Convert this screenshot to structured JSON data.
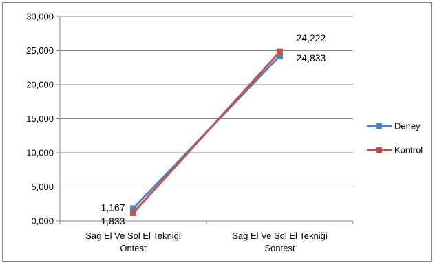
{
  "chart_data": {
    "type": "line",
    "categories": [
      [
        "Sağ El Ve Sol El Tekniği",
        "Öntest"
      ],
      [
        "Sağ El Ve Sol El Tekniği",
        "Sontest"
      ]
    ],
    "ylim": [
      0,
      30
    ],
    "yticks": [
      0,
      5,
      10,
      15,
      20,
      25,
      30
    ],
    "ytick_labels": [
      "0,000",
      "5,000",
      "10,000",
      "15,000",
      "20,000",
      "25,000",
      "30,000"
    ],
    "grid": "horizontal major",
    "legend": "right",
    "series": [
      {
        "name": "Deney",
        "color": "#4f81bd",
        "values": [
          1.833,
          24.222
        ],
        "labels": [
          "1,833",
          "24,222"
        ]
      },
      {
        "name": "Kontrol",
        "color": "#c0504d",
        "values": [
          1.167,
          24.833
        ],
        "labels": [
          "1,167",
          "24,833"
        ]
      }
    ]
  }
}
